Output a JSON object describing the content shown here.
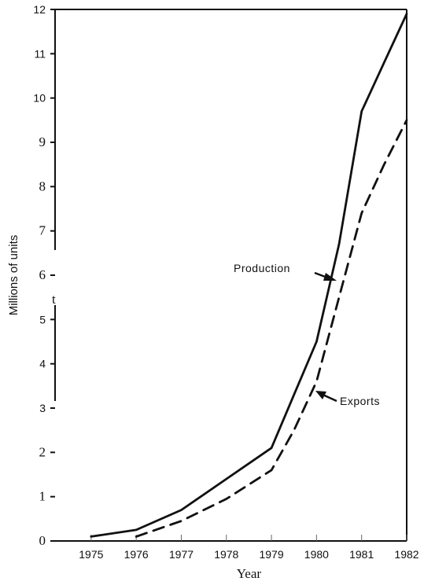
{
  "chart_data": {
    "type": "line",
    "title": "",
    "xlabel": "Year",
    "ylabel": "Millions of units",
    "x": [
      1975,
      1976,
      1977,
      1978,
      1979,
      1980,
      1981,
      1982
    ],
    "xticks": [
      "1975",
      "1976",
      "1977",
      "1978",
      "1979",
      "1980",
      "1981",
      "1982"
    ],
    "yticks": [
      "0",
      "1",
      "2",
      "3",
      "4",
      "5",
      "6",
      "7",
      "8",
      "9",
      "10",
      "11",
      "12"
    ],
    "xlim": [
      1974.2,
      1982
    ],
    "ylim": [
      0,
      12
    ],
    "grid": false,
    "series": [
      {
        "name": "Production",
        "style": "solid",
        "x": [
          1975,
          1976,
          1977,
          1978,
          1979,
          1979.5,
          1980,
          1980.5,
          1981,
          1981.5,
          1982
        ],
        "y": [
          0.1,
          0.25,
          0.7,
          1.4,
          2.1,
          3.3,
          4.5,
          6.7,
          9.7,
          10.8,
          11.9
        ]
      },
      {
        "name": "Exports",
        "style": "dashed",
        "x": [
          1976,
          1977,
          1978,
          1979,
          1979.5,
          1980,
          1980.5,
          1981,
          1981.5,
          1982
        ],
        "y": [
          0.1,
          0.45,
          0.95,
          1.6,
          2.5,
          3.6,
          5.5,
          7.4,
          8.5,
          9.5
        ]
      }
    ],
    "annotations": [
      {
        "text": "Production",
        "x": 1980.5,
        "y": 6.2
      },
      {
        "text": "Exports",
        "x": 1980,
        "y": 3.35
      }
    ]
  }
}
